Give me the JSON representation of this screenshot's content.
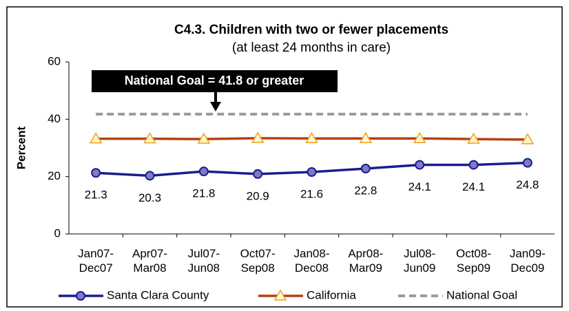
{
  "chart_data": {
    "type": "line",
    "title": "C4.3. Children with two or fewer placements",
    "subtitle": "(at least 24 months in care)",
    "y_label": "Percent",
    "annotation": "National Goal =  41.8 or greater",
    "categories": [
      "Jan07-\nDec07",
      "Apr07-\nMar08",
      "Jul07-\nJun08",
      "Oct07-\nSep08",
      "Jan08-\nDec08",
      "Apr08-\nMar09",
      "Jul08-\nJun09",
      "Oct08-\nSep09",
      "Jan09-\nDec09"
    ],
    "series": [
      {
        "name": "Santa Clara County",
        "color": "#1c1c8c",
        "marker": "circle",
        "show_labels": true,
        "values": [
          21.3,
          20.3,
          21.8,
          20.9,
          21.6,
          22.8,
          24.1,
          24.1,
          24.8
        ]
      },
      {
        "name": "California",
        "color": "#b4410f",
        "marker": "triangle",
        "show_labels": false,
        "values": [
          33.2,
          33.2,
          33.1,
          33.4,
          33.3,
          33.3,
          33.3,
          33.1,
          32.9
        ]
      },
      {
        "name": "National Goal",
        "color": "#9a9a9a",
        "marker": "none",
        "dashed": true,
        "show_labels": false,
        "values": [
          41.8,
          41.8,
          41.8,
          41.8,
          41.8,
          41.8,
          41.8,
          41.8,
          41.8
        ]
      }
    ],
    "ylim": [
      0,
      60
    ],
    "yticks": [
      0,
      20,
      40,
      60
    ],
    "grid": false
  }
}
